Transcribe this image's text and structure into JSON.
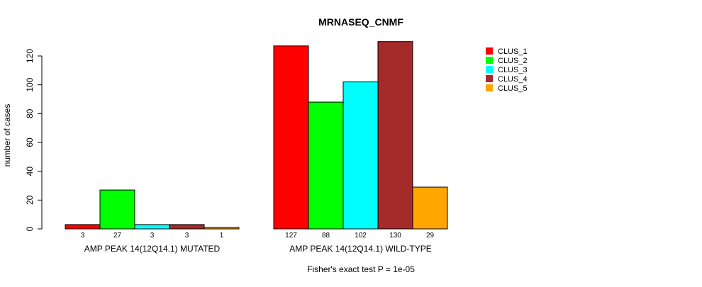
{
  "chart_data": {
    "type": "bar",
    "title": "MRNASEQ_CNMF",
    "ylabel": "number of cases",
    "ylim": [
      0,
      120
    ],
    "yticks": [
      0,
      20,
      40,
      60,
      80,
      100,
      120
    ],
    "groups": [
      "AMP PEAK 14(12Q14.1) MUTATED",
      "AMP PEAK 14(12Q14.1) WILD-TYPE"
    ],
    "series": [
      {
        "name": "CLUS_1",
        "color": "#ff0000",
        "values": [
          3,
          127
        ]
      },
      {
        "name": "CLUS_2",
        "color": "#00ff00",
        "values": [
          27,
          88
        ]
      },
      {
        "name": "CLUS_3",
        "color": "#00ffff",
        "values": [
          3,
          102
        ]
      },
      {
        "name": "CLUS_4",
        "color": "#a52a2a",
        "values": [
          3,
          130
        ]
      },
      {
        "name": "CLUS_5",
        "color": "#ffa500",
        "values": [
          1,
          29
        ]
      }
    ],
    "legend_position": "top-right",
    "annotation": "Fisher's exact test P = 1e-05"
  }
}
